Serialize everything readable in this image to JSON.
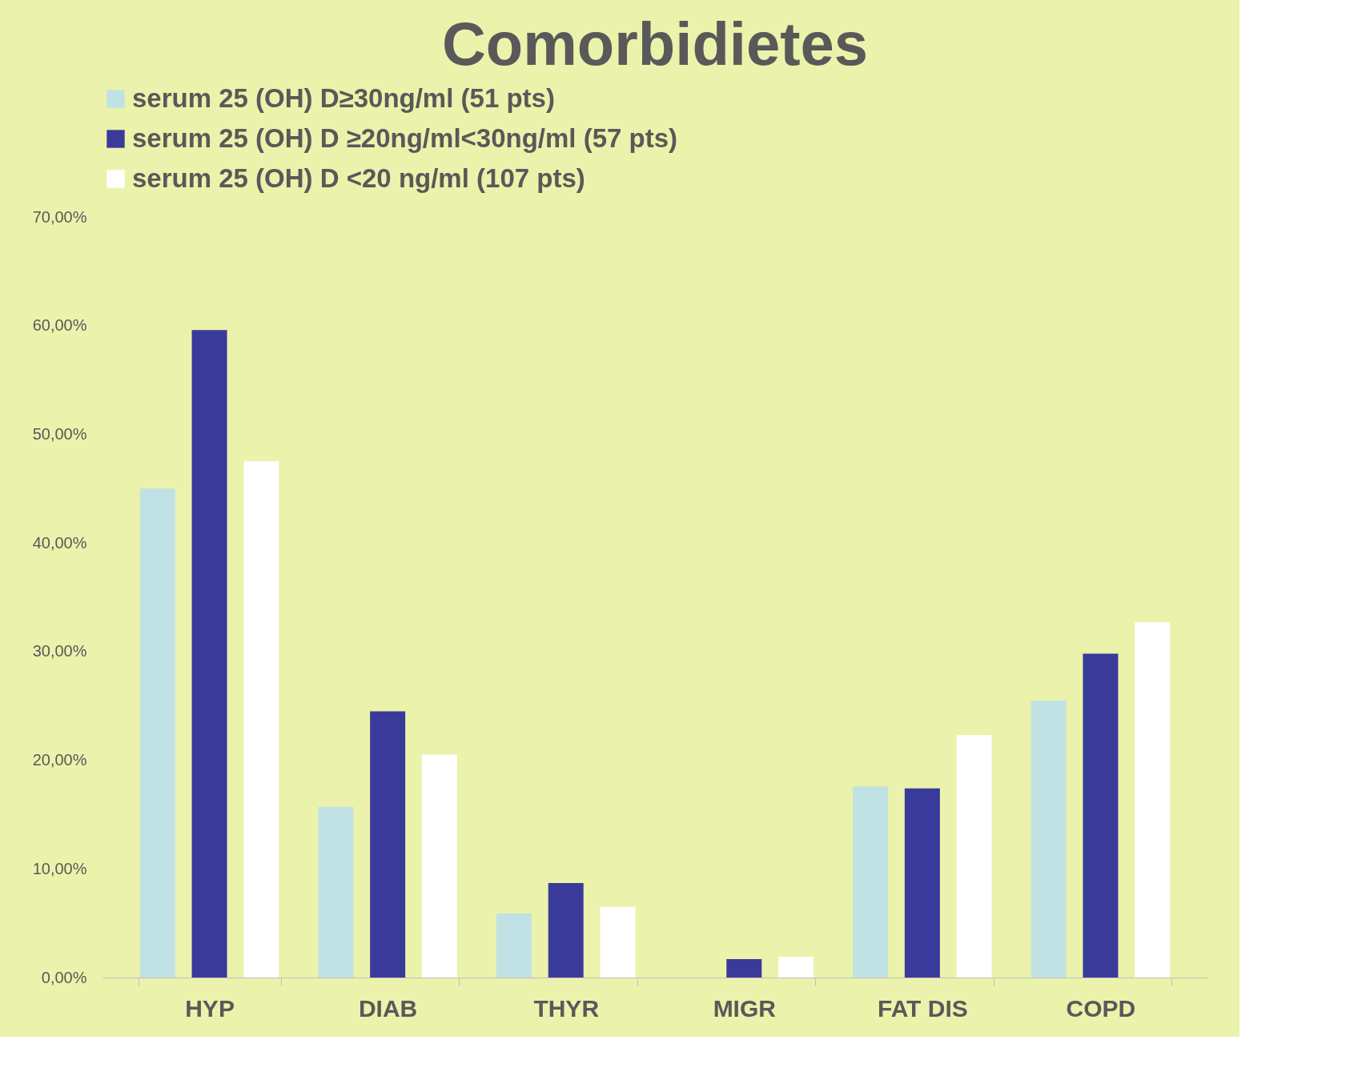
{
  "chart_data": {
    "type": "bar",
    "title": "Comorbidietes",
    "categories": [
      "HYP",
      "DIAB",
      "THYR",
      "MIGR",
      "FAT DIS",
      "COPD"
    ],
    "series": [
      {
        "name": "serum 25 (OH) D≥30ng/ml  (51 pts)",
        "color": "#c0e2e4",
        "values": [
          45.0,
          15.7,
          5.9,
          0,
          17.6,
          25.5
        ]
      },
      {
        "name": "serum 25 (OH) D ≥20ng/ml<30ng/ml  (57 pts)",
        "color": "#3a3a9a",
        "values": [
          59.6,
          24.5,
          8.7,
          1.7,
          17.4,
          29.8
        ]
      },
      {
        "name": "serum 25 (OH) D <20 ng/ml (107 pts)",
        "color": "#ffffff",
        "values": [
          47.5,
          20.5,
          6.5,
          1.9,
          22.3,
          32.7
        ]
      }
    ],
    "ylim": [
      0,
      70
    ],
    "yticks": [
      {
        "value": 0,
        "label": "0,00%"
      },
      {
        "value": 10,
        "label": "10,00%"
      },
      {
        "value": 20,
        "label": "20,00%"
      },
      {
        "value": 30,
        "label": "30,00%"
      },
      {
        "value": 40,
        "label": "40,00%"
      },
      {
        "value": 50,
        "label": "50,00%"
      },
      {
        "value": 60,
        "label": "60,00%"
      },
      {
        "value": 70,
        "label": "70,00%"
      }
    ],
    "grid": false,
    "legend": "top"
  }
}
